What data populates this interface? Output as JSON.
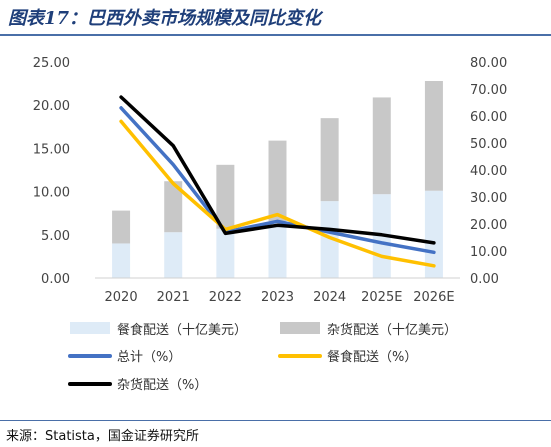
{
  "title": "图表17：巴西外卖市场规模及同比变化",
  "source": "来源：Statista，国金证券研究所",
  "chart_data": {
    "type": "bar",
    "categories": [
      "2020",
      "2021",
      "2022",
      "2023",
      "2024",
      "2025E",
      "2026E"
    ],
    "left_ylim": [
      0,
      25
    ],
    "left_ticks": [
      "0.00",
      "5.00",
      "10.00",
      "15.00",
      "20.00",
      "25.00"
    ],
    "right_ylim": [
      0,
      80
    ],
    "right_ticks": [
      "0.00",
      "10.00",
      "20.00",
      "30.00",
      "40.00",
      "50.00",
      "60.00",
      "70.00",
      "80.00"
    ],
    "bar_series": [
      {
        "name": "餐食配送（十亿美元）",
        "color": "#deebf7",
        "values": [
          4.0,
          5.3,
          5.7,
          6.6,
          8.9,
          9.7,
          10.1
        ]
      },
      {
        "name": "杂货配送（十亿美元）",
        "color": "#c8c8c8",
        "values": [
          3.8,
          5.9,
          7.4,
          9.3,
          9.6,
          11.2,
          12.7
        ]
      }
    ],
    "line_series": [
      {
        "name": "总计（%）",
        "color": "#4472c4",
        "values": [
          63.0,
          42.0,
          17.0,
          21.0,
          17.0,
          13.0,
          9.5
        ]
      },
      {
        "name": "餐食配送（%）",
        "color": "#ffc000",
        "values": [
          58.0,
          35.0,
          18.0,
          23.5,
          15.0,
          8.0,
          4.5
        ]
      },
      {
        "name": "杂货配送（%）",
        "color": "#000000",
        "values": [
          67.0,
          49.0,
          16.5,
          19.5,
          18.0,
          16.0,
          13.0
        ]
      }
    ]
  }
}
